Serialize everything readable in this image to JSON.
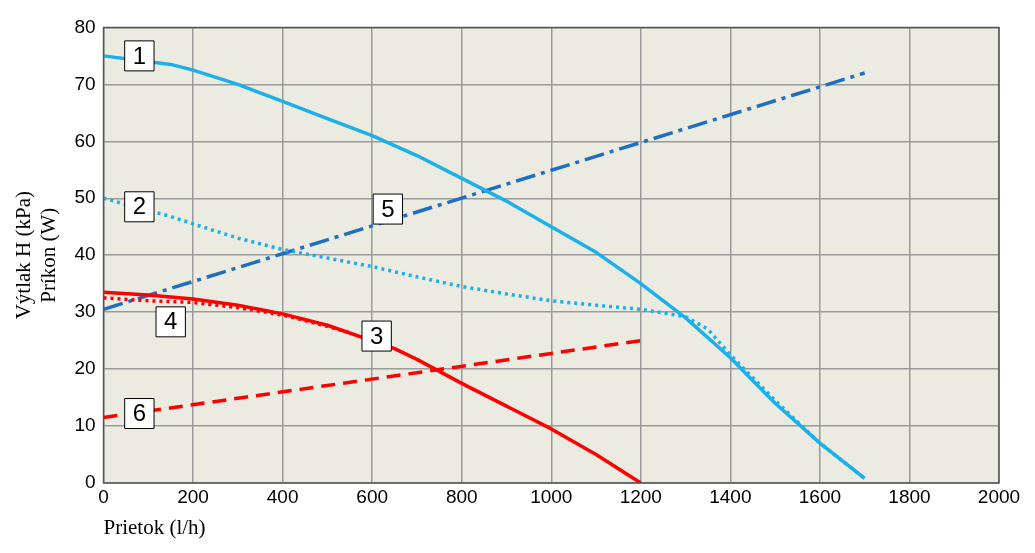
{
  "chart_data": {
    "type": "line",
    "xlabel": "Prietok (l/h)",
    "ylabel": "Výtlak H (kPa)\nPríkon (W)",
    "xlim": [
      0,
      2000
    ],
    "xticks": [
      0,
      200,
      400,
      600,
      800,
      1000,
      1200,
      1400,
      1600,
      1800,
      2000
    ],
    "ylim": [
      0,
      80
    ],
    "yticks": [
      0,
      10,
      20,
      30,
      40,
      50,
      60,
      70,
      80
    ],
    "grid": true,
    "legend": false,
    "marker": "none",
    "series": [
      {
        "color": "#1cb0e8",
        "line_style": "solid",
        "x": [
          0,
          150,
          200,
          300,
          400,
          500,
          600,
          700,
          800,
          900,
          1000,
          1100,
          1200,
          1300,
          1400,
          1500,
          1600,
          1700
        ],
        "values": [
          75,
          73.5,
          72.5,
          70,
          67,
          64,
          61,
          57.5,
          53.5,
          49.5,
          45,
          40.5,
          35,
          29,
          22,
          14,
          7,
          0.8
        ]
      },
      {
        "color": "#1cb0e8",
        "line_style": "dotted",
        "x": [
          0,
          150,
          200,
          300,
          400,
          500,
          600,
          700,
          800,
          900,
          1000,
          1100,
          1200,
          1300,
          1350,
          1400,
          1500,
          1600,
          1700
        ],
        "values": [
          50,
          46.8,
          45.5,
          43,
          41,
          39.5,
          38,
          36.2,
          34.5,
          33.2,
          32,
          31.2,
          30.5,
          29.2,
          27,
          22.5,
          14.5,
          7,
          0.8
        ]
      },
      {
        "color": "#ff0000",
        "line_style": "solid",
        "x": [
          0,
          100,
          200,
          300,
          400,
          500,
          650,
          700,
          800,
          900,
          1000,
          1100,
          1200
        ],
        "values": [
          33.5,
          33,
          32.3,
          31.2,
          29.7,
          27.7,
          23.6,
          21.7,
          17.5,
          13.5,
          9.5,
          5,
          0
        ]
      },
      {
        "color": "#ff0000",
        "line_style": "dotted",
        "x": [
          0,
          100,
          200,
          300,
          400,
          500,
          550
        ],
        "values": [
          32.5,
          32,
          31.7,
          30.8,
          29.5,
          27.5,
          26.4
        ]
      },
      {
        "color": "#1f6fbf",
        "line_style": "dashdot",
        "x": [
          0,
          1700
        ],
        "values": [
          30.5,
          72
        ]
      },
      {
        "color": "#ff0000",
        "line_style": "dashed",
        "x": [
          0,
          1200
        ],
        "values": [
          11.5,
          25
        ]
      }
    ],
    "annotations": [
      {
        "text": "1",
        "x": 80,
        "y": 75
      },
      {
        "text": "2",
        "x": 80,
        "y": 48.5
      },
      {
        "text": "3",
        "x": 610,
        "y": 25.8
      },
      {
        "text": "4",
        "x": 150,
        "y": 28.3
      },
      {
        "text": "5",
        "x": 635,
        "y": 48.1
      },
      {
        "text": "6",
        "x": 80,
        "y": 12.2
      }
    ]
  }
}
